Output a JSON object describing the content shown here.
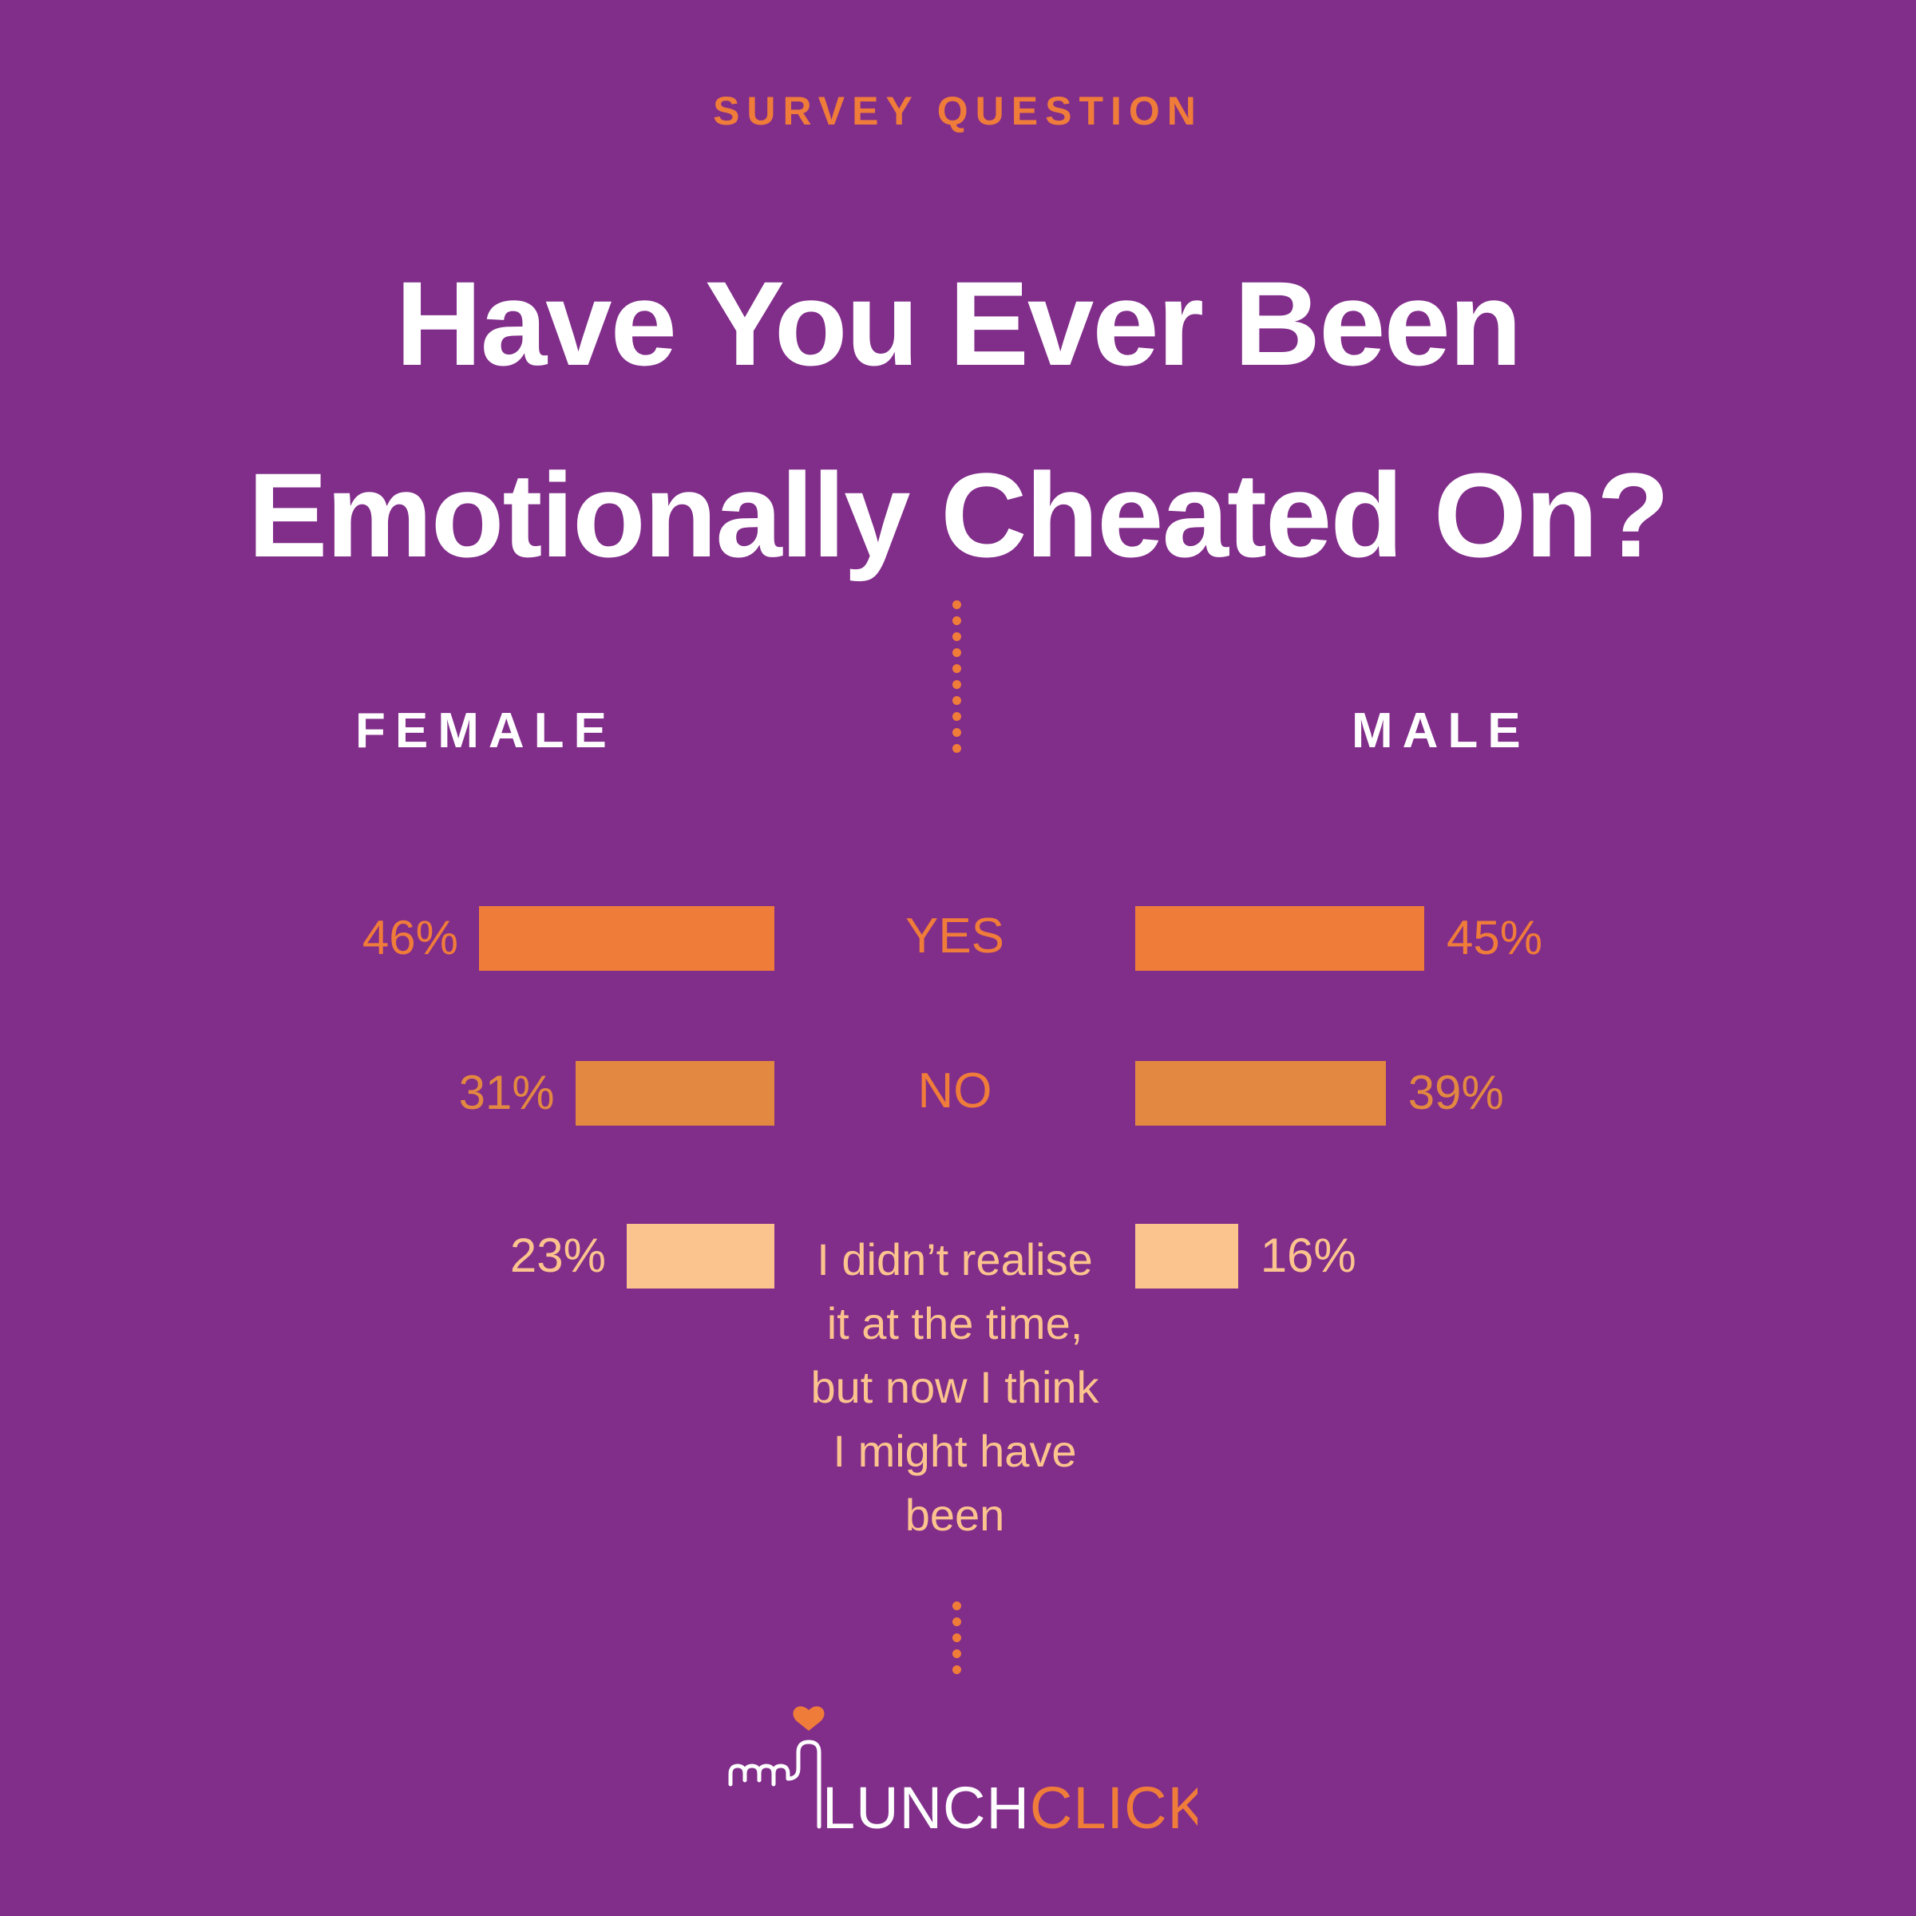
{
  "header": {
    "eyebrow": "SURVEY QUESTION",
    "title_line1": "Have You Ever Been",
    "title_line2": "Emotionally Cheated On?"
  },
  "groups": {
    "left": "FEMALE",
    "right": "MALE"
  },
  "chart_data": {
    "type": "bar",
    "orientation": "horizontal-butterfly",
    "categories": [
      "YES",
      "NO",
      "I didn’t realise it at the time, but now I think I might have been"
    ],
    "category_lines": [
      [
        "YES"
      ],
      [
        "NO"
      ],
      [
        "I didn’t realise",
        "it at the time,",
        "but now I think",
        "I might have",
        "been"
      ]
    ],
    "series": [
      {
        "name": "FEMALE",
        "side": "left",
        "values": [
          46,
          31,
          23
        ],
        "labels": [
          "46%",
          "31%",
          "23%"
        ]
      },
      {
        "name": "MALE",
        "side": "right",
        "values": [
          45,
          39,
          16
        ],
        "labels": [
          "45%",
          "39%",
          "16%"
        ]
      }
    ],
    "value_unit": "%",
    "colors": [
      "#f07c3a",
      "#e38841",
      "#fbc48e"
    ],
    "category_text_colors": [
      "#f07c3a",
      "#f07c3a",
      "#fbc48e"
    ],
    "pct_text_colors": [
      "#f07c3a",
      "#e38841",
      "#fbc48e"
    ],
    "xlim": [
      0,
      46
    ],
    "grid": false,
    "legend": "none"
  },
  "brand": {
    "name_part1": "LUNCH",
    "name_part2": "CLICK",
    "icon": "heart-icon",
    "accent_color": "#f07c3a"
  }
}
